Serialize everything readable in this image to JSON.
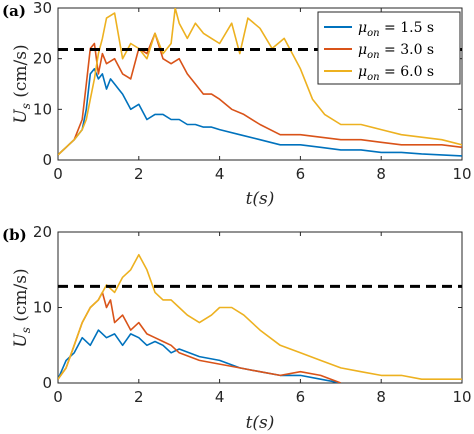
{
  "chart_data": [
    {
      "type": "line",
      "panel_label": "(a)",
      "xlabel": "t(s)",
      "ylabel": "U_s (cm/s)",
      "xlim": [
        0,
        10
      ],
      "ylim": [
        0,
        30
      ],
      "xticks": [
        "0",
        "2",
        "4",
        "6",
        "8",
        "10"
      ],
      "yticks": [
        "0",
        "10",
        "20",
        "30"
      ],
      "legend": "top-right",
      "threshold": 21.8,
      "series": [
        {
          "name": "μon = 1.5 s",
          "color": "#0072bd",
          "x": [
            0,
            0.2,
            0.4,
            0.6,
            0.7,
            0.8,
            0.9,
            1.0,
            1.1,
            1.2,
            1.3,
            1.4,
            1.5,
            1.6,
            1.8,
            2.0,
            2.2,
            2.4,
            2.6,
            2.8,
            3.0,
            3.2,
            3.4,
            3.6,
            3.8,
            4.0,
            4.5,
            5.0,
            5.5,
            6.0,
            6.5,
            7.0,
            7.5,
            8.0,
            8.5,
            9.0,
            9.5,
            10.0
          ],
          "y": [
            1,
            2.5,
            4,
            6,
            10,
            17,
            18,
            16,
            17,
            14,
            16,
            15,
            14,
            13,
            10,
            11,
            8,
            9,
            9,
            8,
            8,
            7,
            7,
            6.5,
            6.5,
            6,
            5,
            4,
            3,
            3,
            2.5,
            2,
            2,
            1.5,
            1.5,
            1.2,
            1,
            0.8
          ]
        },
        {
          "name": "μon = 3.0 s",
          "color": "#d95319",
          "x": [
            0,
            0.2,
            0.4,
            0.6,
            0.7,
            0.8,
            0.9,
            1.0,
            1.1,
            1.2,
            1.4,
            1.6,
            1.8,
            2.0,
            2.2,
            2.4,
            2.6,
            2.8,
            3.0,
            3.2,
            3.4,
            3.6,
            3.8,
            4.0,
            4.3,
            4.6,
            5.0,
            5.5,
            6.0,
            6.5,
            7.0,
            7.5,
            8.0,
            8.5,
            9.0,
            9.5,
            10.0
          ],
          "y": [
            1,
            2.5,
            4,
            8,
            15,
            22,
            23,
            17,
            21,
            19,
            20,
            17,
            16,
            22,
            21,
            25,
            20,
            19,
            20,
            17,
            15,
            13,
            13,
            12,
            10,
            9,
            7,
            5,
            5,
            4.5,
            4,
            4,
            3.5,
            3,
            3,
            3,
            2.5
          ]
        },
        {
          "name": "μon = 6.0 s",
          "color": "#edb120",
          "x": [
            0,
            0.2,
            0.4,
            0.6,
            0.7,
            0.8,
            0.9,
            1.0,
            1.1,
            1.2,
            1.4,
            1.6,
            1.8,
            2.0,
            2.2,
            2.4,
            2.6,
            2.8,
            2.9,
            3.0,
            3.2,
            3.4,
            3.6,
            3.8,
            4.0,
            4.3,
            4.5,
            4.7,
            5.0,
            5.3,
            5.6,
            6.0,
            6.3,
            6.6,
            7.0,
            7.5,
            8.0,
            8.5,
            9.0,
            9.5,
            10.0
          ],
          "y": [
            1,
            2.5,
            4,
            6,
            8,
            12,
            16,
            21,
            24,
            28,
            29,
            20,
            23,
            22,
            20,
            25,
            21,
            23,
            30,
            27,
            24,
            27,
            25,
            24,
            23,
            27,
            21,
            28,
            26,
            22,
            24,
            18,
            12,
            9,
            7,
            7,
            6,
            5,
            4.5,
            4,
            3
          ]
        }
      ]
    },
    {
      "type": "line",
      "panel_label": "(b)",
      "xlabel": "t(s)",
      "ylabel": "U_s (cm/s)",
      "xlim": [
        0,
        10
      ],
      "ylim": [
        0,
        20
      ],
      "xticks": [
        "0",
        "2",
        "4",
        "6",
        "8",
        "10"
      ],
      "yticks": [
        "0",
        "10",
        "20"
      ],
      "threshold": 12.8,
      "series": [
        {
          "name": "μon = 1.5 s",
          "color": "#0072bd",
          "x": [
            0,
            0.2,
            0.4,
            0.6,
            0.8,
            1.0,
            1.2,
            1.4,
            1.6,
            1.8,
            2.0,
            2.2,
            2.4,
            2.6,
            2.8,
            3.0,
            3.5,
            4.0,
            4.5,
            5.0,
            5.5,
            6.0,
            6.5,
            7.0
          ],
          "y": [
            0.5,
            3,
            4,
            6,
            5,
            7,
            6,
            6.5,
            5,
            6.5,
            6,
            5,
            5.5,
            5,
            4,
            4.5,
            3.5,
            3,
            2,
            1.5,
            1,
            1,
            0.5,
            0
          ]
        },
        {
          "name": "μon = 3.0 s",
          "color": "#d95319",
          "x": [
            0,
            0.2,
            0.4,
            0.6,
            0.8,
            1.0,
            1.1,
            1.2,
            1.3,
            1.4,
            1.6,
            1.8,
            2.0,
            2.2,
            2.4,
            2.6,
            2.8,
            3.0,
            3.5,
            4.0,
            4.5,
            5.0,
            5.5,
            6.0,
            6.5,
            7.0
          ],
          "y": [
            0.5,
            2,
            5,
            8,
            10,
            11,
            12,
            10,
            11,
            8,
            9,
            7,
            8,
            6.5,
            6,
            5.5,
            5,
            4,
            3,
            2.5,
            2,
            1.5,
            1,
            1.5,
            1,
            0
          ]
        },
        {
          "name": "μon = 6.0 s",
          "color": "#edb120",
          "x": [
            0,
            0.2,
            0.4,
            0.6,
            0.8,
            1.0,
            1.2,
            1.4,
            1.6,
            1.8,
            2.0,
            2.2,
            2.4,
            2.6,
            2.8,
            3.0,
            3.2,
            3.5,
            3.8,
            4.0,
            4.3,
            4.6,
            5.0,
            5.5,
            6.0,
            6.5,
            7.0,
            7.5,
            8.0,
            8.5,
            9.0,
            9.5,
            10.0
          ],
          "y": [
            0.5,
            2,
            5,
            8,
            10,
            11,
            13,
            12,
            14,
            15,
            17,
            15,
            12,
            11,
            11,
            10,
            9,
            8,
            9,
            10,
            10,
            9,
            7,
            5,
            4,
            3,
            2,
            1.5,
            1,
            1,
            0.5,
            0.5,
            0.5
          ]
        }
      ]
    }
  ]
}
